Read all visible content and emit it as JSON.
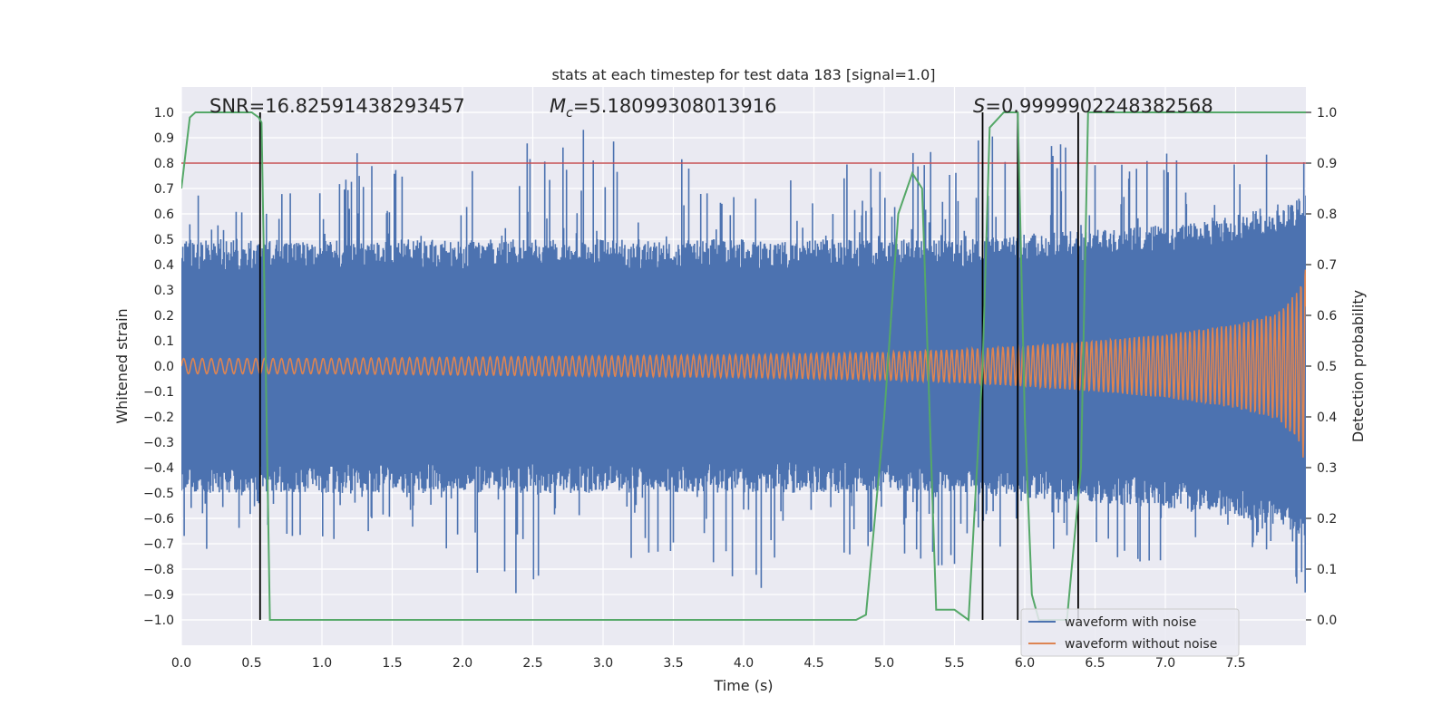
{
  "chart_data": {
    "type": "line",
    "title": "stats at each timestep for test data 183 [signal=1.0]",
    "xlabel": "Time (s)",
    "ylabel_left": "Whitened strain",
    "ylabel_right": "Detection probability",
    "xlim": [
      0.0,
      8.0
    ],
    "ylim_left": [
      -1.1,
      1.1
    ],
    "ylim_right": [
      -0.05,
      1.05
    ],
    "x_ticks": [
      0.0,
      0.5,
      1.0,
      1.5,
      2.0,
      2.5,
      3.0,
      3.5,
      4.0,
      4.5,
      5.0,
      5.5,
      6.0,
      6.5,
      7.0,
      7.5
    ],
    "x_tick_labels": [
      "0.0",
      "0.5",
      "1.0",
      "1.5",
      "2.0",
      "2.5",
      "3.0",
      "3.5",
      "4.0",
      "4.5",
      "5.0",
      "5.5",
      "6.0",
      "6.5",
      "7.0",
      "7.5"
    ],
    "y_ticks_left": [
      1.0,
      0.9,
      0.8,
      0.7,
      0.6,
      0.5,
      0.4,
      0.3,
      0.2,
      0.1,
      0.0,
      -0.1,
      -0.2,
      -0.3,
      -0.4,
      -0.5,
      -0.6,
      -0.7,
      -0.8,
      -0.9,
      -1.0
    ],
    "y_tick_labels_left": [
      "1.0",
      "0.9",
      "0.8",
      "0.7",
      "0.6",
      "0.5",
      "0.4",
      "0.3",
      "0.2",
      "0.1",
      "0.0",
      "−0.1",
      "−0.2",
      "−0.3",
      "−0.4",
      "−0.5",
      "−0.6",
      "−0.7",
      "−0.8",
      "−0.9",
      "−1.0"
    ],
    "y_ticks_right": [
      1.0,
      0.9,
      0.8,
      0.7,
      0.6,
      0.5,
      0.4,
      0.3,
      0.2,
      0.1,
      0.0
    ],
    "y_tick_labels_right": [
      "1.0",
      "0.9",
      "0.8",
      "0.7",
      "0.6",
      "0.5",
      "0.4",
      "0.3",
      "0.2",
      "0.1",
      "0.0"
    ],
    "grid": true,
    "annotations": {
      "snr": "SNR=16.82591438293457",
      "mc_symbol": "M",
      "mc_sub": "c",
      "mc_value": "=5.18099308013916",
      "s_symbol": "S",
      "s_value": "=0.9999902248382568"
    },
    "series": [
      {
        "name": "waveform with noise",
        "color": "#4c72b0",
        "axis": "left",
        "envelope": {
          "x": [
            0.0,
            0.5,
            1.0,
            1.5,
            2.0,
            2.5,
            3.0,
            3.5,
            4.0,
            4.5,
            5.0,
            5.5,
            6.0,
            6.5,
            7.0,
            7.5,
            7.9,
            8.0
          ],
          "core_upper": [
            0.4,
            0.4,
            0.4,
            0.4,
            0.4,
            0.4,
            0.4,
            0.4,
            0.4,
            0.4,
            0.4,
            0.4,
            0.42,
            0.44,
            0.46,
            0.5,
            0.55,
            0.58
          ],
          "peak_upper": [
            0.8,
            0.65,
            0.88,
            0.8,
            0.8,
            0.93,
            0.94,
            0.82,
            0.9,
            0.72,
            0.9,
            0.86,
            0.97,
            0.82,
            0.85,
            0.82,
            0.86,
            0.86
          ],
          "peak_lower": [
            -0.8,
            -0.65,
            -0.7,
            -0.65,
            -0.8,
            -0.93,
            -0.85,
            -0.75,
            -0.95,
            -0.7,
            -0.85,
            -0.78,
            -0.7,
            -0.75,
            -0.8,
            -0.7,
            -0.8,
            -1.0
          ]
        }
      },
      {
        "name": "waveform without noise",
        "color": "#dd8452",
        "axis": "left",
        "envelope": {
          "x": [
            0.0,
            1.0,
            2.0,
            3.0,
            4.0,
            5.0,
            5.5,
            6.0,
            6.5,
            7.0,
            7.5,
            7.8,
            7.95,
            8.0
          ],
          "amplitude": [
            0.03,
            0.03,
            0.035,
            0.04,
            0.045,
            0.055,
            0.065,
            0.08,
            0.1,
            0.125,
            0.165,
            0.21,
            0.3,
            0.4
          ]
        }
      },
      {
        "name": "detection probability",
        "color": "#55a868",
        "axis": "right",
        "x": [
          0.0,
          0.06,
          0.1,
          0.2,
          0.3,
          0.4,
          0.5,
          0.55,
          0.57,
          0.6,
          0.63,
          4.5,
          4.8,
          4.87,
          5.0,
          5.1,
          5.2,
          5.27,
          5.3,
          5.37,
          5.5,
          5.6,
          5.7,
          5.75,
          5.85,
          5.95,
          6.0,
          6.05,
          6.1,
          6.3,
          6.4,
          6.45,
          7.0,
          8.0
        ],
        "y": [
          0.85,
          0.99,
          1.0,
          1.0,
          1.0,
          1.0,
          1.0,
          0.99,
          0.98,
          0.5,
          0.0,
          0.0,
          0.0,
          0.01,
          0.4,
          0.8,
          0.88,
          0.85,
          0.6,
          0.02,
          0.02,
          0.0,
          0.5,
          0.97,
          1.0,
          1.0,
          0.4,
          0.05,
          0.0,
          0.0,
          0.3,
          1.0,
          1.0,
          1.0
        ]
      }
    ],
    "threshold_line": {
      "color": "#c44e52",
      "axis": "right",
      "value": 0.9
    },
    "vertical_lines": {
      "color": "#000000",
      "axis": "right",
      "x": [
        0.56,
        5.7,
        5.95,
        6.38
      ],
      "y_range": [
        0.0,
        1.0
      ]
    },
    "legend": {
      "position": "lower-right",
      "entries": [
        "waveform with noise",
        "waveform without noise"
      ]
    }
  }
}
